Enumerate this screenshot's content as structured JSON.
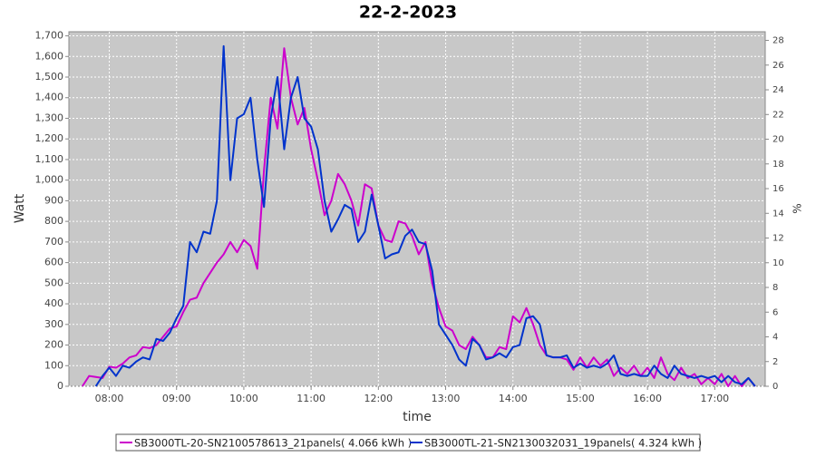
{
  "chart_data": {
    "type": "line",
    "title": "22-2-2023",
    "x_label": "time",
    "y_label": "Watt",
    "y2_label": "%",
    "x": [
      7.5,
      7.6,
      7.7,
      7.8,
      7.9,
      8.0,
      8.1,
      8.2,
      8.3,
      8.4,
      8.5,
      8.6,
      8.7,
      8.8,
      8.9,
      9.0,
      9.1,
      9.2,
      9.3,
      9.4,
      9.5,
      9.6,
      9.7,
      9.8,
      9.9,
      10.0,
      10.1,
      10.2,
      10.3,
      10.4,
      10.5,
      10.6,
      10.7,
      10.8,
      10.9,
      11.0,
      11.1,
      11.2,
      11.3,
      11.4,
      11.5,
      11.6,
      11.7,
      11.8,
      11.9,
      12.0,
      12.1,
      12.2,
      12.3,
      12.4,
      12.5,
      12.6,
      12.7,
      12.8,
      12.9,
      13.0,
      13.1,
      13.2,
      13.3,
      13.4,
      13.5,
      13.6,
      13.7,
      13.8,
      13.9,
      14.0,
      14.1,
      14.2,
      14.3,
      14.4,
      14.5,
      14.6,
      14.7,
      14.8,
      14.9,
      15.0,
      15.1,
      15.2,
      15.3,
      15.4,
      15.5,
      15.6,
      15.7,
      15.8,
      15.9,
      16.0,
      16.1,
      16.2,
      16.3,
      16.4,
      16.5,
      16.6,
      16.7,
      16.8,
      16.9,
      17.0,
      17.1,
      17.2,
      17.3,
      17.4,
      17.5,
      17.6
    ],
    "series": [
      {
        "name": "SB3000TL-20-SN2100578613_21panels( 4.066 kWh )",
        "color": "#cc00cc",
        "values": [
          null,
          0,
          50,
          45,
          40,
          95,
          90,
          110,
          140,
          150,
          190,
          185,
          200,
          240,
          280,
          290,
          360,
          420,
          430,
          500,
          550,
          600,
          640,
          700,
          650,
          710,
          680,
          570,
          1050,
          1400,
          1250,
          1640,
          1400,
          1270,
          1350,
          1150,
          1000,
          830,
          900,
          1030,
          980,
          900,
          780,
          980,
          960,
          780,
          710,
          700,
          800,
          790,
          730,
          640,
          700,
          500,
          380,
          290,
          270,
          200,
          180,
          240,
          200,
          140,
          140,
          190,
          180,
          340,
          310,
          380,
          300,
          200,
          150,
          140,
          140,
          130,
          80,
          140,
          90,
          140,
          100,
          130,
          50,
          90,
          60,
          100,
          50,
          90,
          40,
          140,
          60,
          30,
          90,
          40,
          60,
          10,
          40,
          10,
          60,
          0,
          50,
          0,
          40,
          0
        ]
      },
      {
        "name": "SB3000TL-21-SN2130032031_19panels( 4.324 kWh )",
        "color": "#0033cc",
        "values": [
          null,
          null,
          null,
          0,
          50,
          90,
          50,
          100,
          90,
          120,
          140,
          130,
          230,
          220,
          260,
          330,
          390,
          700,
          650,
          750,
          740,
          900,
          1650,
          1000,
          1300,
          1320,
          1400,
          1100,
          870,
          1300,
          1500,
          1150,
          1400,
          1500,
          1300,
          1260,
          1150,
          900,
          750,
          810,
          880,
          860,
          700,
          750,
          930,
          780,
          620,
          640,
          650,
          730,
          760,
          700,
          690,
          560,
          300,
          250,
          200,
          130,
          100,
          230,
          200,
          130,
          140,
          160,
          140,
          190,
          200,
          330,
          340,
          300,
          150,
          140,
          140,
          150,
          90,
          110,
          90,
          100,
          90,
          110,
          150,
          60,
          50,
          60,
          50,
          50,
          100,
          60,
          40,
          100,
          60,
          50,
          40,
          50,
          40,
          50,
          20,
          50,
          20,
          10,
          40,
          0
        ]
      }
    ],
    "xlim": [
      7.4,
      17.75
    ],
    "xticks": [
      {
        "value": 8,
        "label": "08:00"
      },
      {
        "value": 9,
        "label": "09:00"
      },
      {
        "value": 10,
        "label": "10:00"
      },
      {
        "value": 11,
        "label": "11:00"
      },
      {
        "value": 12,
        "label": "12:00"
      },
      {
        "value": 13,
        "label": "13:00"
      },
      {
        "value": 14,
        "label": "14:00"
      },
      {
        "value": 15,
        "label": "15:00"
      },
      {
        "value": 16,
        "label": "16:00"
      },
      {
        "value": 17,
        "label": "17:00"
      }
    ],
    "ylim": [
      0,
      1720
    ],
    "yticks": [
      0,
      100,
      200,
      300,
      400,
      500,
      600,
      700,
      800,
      900,
      {
        "value": 1000,
        "label": "1,000"
      },
      {
        "value": 1100,
        "label": "1,100"
      },
      {
        "value": 1200,
        "label": "1,200"
      },
      {
        "value": 1300,
        "label": "1,300"
      },
      {
        "value": 1400,
        "label": "1,400"
      },
      {
        "value": 1500,
        "label": "1,500"
      },
      {
        "value": 1600,
        "label": "1,600"
      },
      {
        "value": 1700,
        "label": "1,700"
      }
    ],
    "y2lim": [
      0,
      28.7
    ],
    "y2ticks": [
      0,
      2,
      4,
      6,
      8,
      10,
      12,
      14,
      16,
      18,
      20,
      22,
      24,
      26,
      28
    ],
    "grid": true,
    "legend": "bottom"
  }
}
